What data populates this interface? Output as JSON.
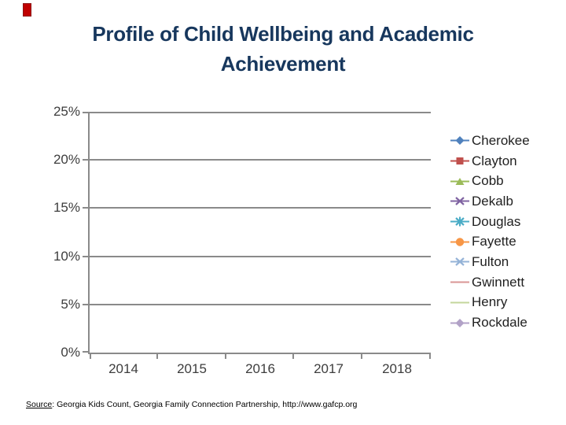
{
  "slide": {
    "title_line1": "Profile of Child Wellbeing and Academic",
    "title_line2": "Achievement",
    "title_color": "#17375D",
    "accent_mark_color": "#C00000"
  },
  "source": {
    "label": "Source",
    "rest": ": Georgia Kids Count, Georgia Family Connection Partnership, http://www.gafcp.org"
  },
  "chart_data": {
    "type": "line",
    "title": "Profile of Child Wellbeing and Academic Achievement",
    "x_categories": [
      "2014",
      "2015",
      "2016",
      "2017",
      "2018"
    ],
    "y_tick_labels": [
      "25%",
      "20%",
      "15%",
      "10%",
      "5%",
      "0%"
    ],
    "ylim": [
      0,
      25
    ],
    "grid": true,
    "legend_position": "right",
    "axis_color": "#8A8A8A",
    "tick_label_color": "#3D3D3D",
    "series": [
      {
        "name": "Cherokee",
        "color": "#4F81BD",
        "marker": "diamond",
        "values": []
      },
      {
        "name": "Clayton",
        "color": "#C0504D",
        "marker": "square",
        "values": []
      },
      {
        "name": "Cobb",
        "color": "#9BBB59",
        "marker": "triangle",
        "values": []
      },
      {
        "name": "Dekalb",
        "color": "#8064A2",
        "marker": "x",
        "values": []
      },
      {
        "name": "Douglas",
        "color": "#4BACC6",
        "marker": "asterisk",
        "values": []
      },
      {
        "name": "Fayette",
        "color": "#F79646",
        "marker": "circle",
        "values": []
      },
      {
        "name": "Fulton",
        "color": "#95B3D7",
        "marker": "x",
        "values": []
      },
      {
        "name": "Gwinnett",
        "color": "#D99694",
        "marker": "none",
        "values": []
      },
      {
        "name": "Henry",
        "color": "#C3D69B",
        "marker": "none",
        "values": []
      },
      {
        "name": "Rockdale",
        "color": "#B2A2C7",
        "marker": "diamond",
        "values": []
      }
    ]
  }
}
